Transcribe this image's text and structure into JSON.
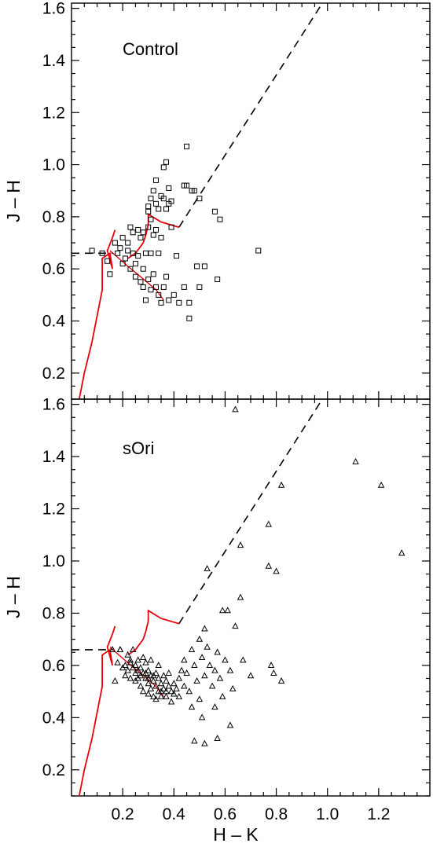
{
  "colors": {
    "sequence": "#e8000b",
    "reddening": "#000000",
    "points": "#000000"
  },
  "chart_data": [
    {
      "type": "scatter",
      "label": "Control",
      "xlabel": "H – K",
      "ylabel": "J – H",
      "xlim": [
        0.0,
        1.4
      ],
      "ylim": [
        0.1,
        1.62
      ],
      "yticks": [
        "0.2",
        "0.4",
        "0.6",
        "0.8",
        "1.0",
        "1.2",
        "1.4",
        "1.6"
      ],
      "xticks": [],
      "marker": "square",
      "points": [
        [
          0.08,
          0.67
        ],
        [
          0.12,
          0.66
        ],
        [
          0.14,
          0.63
        ],
        [
          0.15,
          0.58
        ],
        [
          0.17,
          0.7
        ],
        [
          0.18,
          0.66
        ],
        [
          0.19,
          0.68
        ],
        [
          0.2,
          0.72
        ],
        [
          0.2,
          0.62
        ],
        [
          0.21,
          0.64
        ],
        [
          0.22,
          0.67
        ],
        [
          0.22,
          0.7
        ],
        [
          0.23,
          0.76
        ],
        [
          0.23,
          0.6
        ],
        [
          0.24,
          0.66
        ],
        [
          0.24,
          0.74
        ],
        [
          0.25,
          0.62
        ],
        [
          0.25,
          0.57
        ],
        [
          0.26,
          0.75
        ],
        [
          0.26,
          0.65
        ],
        [
          0.27,
          0.72
        ],
        [
          0.27,
          0.55
        ],
        [
          0.28,
          0.74
        ],
        [
          0.28,
          0.6
        ],
        [
          0.28,
          0.53
        ],
        [
          0.29,
          0.66
        ],
        [
          0.29,
          0.48
        ],
        [
          0.3,
          0.84
        ],
        [
          0.3,
          0.82
        ],
        [
          0.3,
          0.76
        ],
        [
          0.3,
          0.56
        ],
        [
          0.31,
          0.87
        ],
        [
          0.31,
          0.79
        ],
        [
          0.31,
          0.66
        ],
        [
          0.31,
          0.52
        ],
        [
          0.32,
          0.9
        ],
        [
          0.32,
          0.73
        ],
        [
          0.32,
          0.58
        ],
        [
          0.33,
          0.94
        ],
        [
          0.33,
          0.85
        ],
        [
          0.33,
          0.75
        ],
        [
          0.33,
          0.53
        ],
        [
          0.34,
          0.83
        ],
        [
          0.34,
          0.66
        ],
        [
          0.34,
          0.5
        ],
        [
          0.35,
          0.88
        ],
        [
          0.35,
          0.72
        ],
        [
          0.35,
          0.47
        ],
        [
          0.36,
          0.99
        ],
        [
          0.36,
          0.87
        ],
        [
          0.36,
          0.53
        ],
        [
          0.37,
          1.01
        ],
        [
          0.37,
          0.83
        ],
        [
          0.37,
          0.57
        ],
        [
          0.38,
          0.91
        ],
        [
          0.38,
          0.85
        ],
        [
          0.38,
          0.48
        ],
        [
          0.39,
          0.86
        ],
        [
          0.39,
          0.76
        ],
        [
          0.4,
          0.5
        ],
        [
          0.41,
          0.65
        ],
        [
          0.42,
          0.47
        ],
        [
          0.44,
          0.92
        ],
        [
          0.44,
          0.53
        ],
        [
          0.45,
          1.07
        ],
        [
          0.45,
          0.92
        ],
        [
          0.46,
          0.47
        ],
        [
          0.46,
          0.41
        ],
        [
          0.47,
          0.9
        ],
        [
          0.48,
          0.9
        ],
        [
          0.49,
          0.61
        ],
        [
          0.5,
          0.87
        ],
        [
          0.5,
          0.53
        ],
        [
          0.52,
          0.61
        ],
        [
          0.56,
          0.82
        ],
        [
          0.57,
          0.56
        ],
        [
          0.58,
          0.79
        ],
        [
          0.73,
          0.67
        ]
      ]
    },
    {
      "type": "scatter",
      "label": "sOri",
      "xlabel": "H – K",
      "ylabel": "J – H",
      "xlim": [
        0.0,
        1.4
      ],
      "ylim": [
        0.1,
        1.62
      ],
      "yticks": [
        "0.2",
        "0.4",
        "0.6",
        "0.8",
        "1.0",
        "1.2",
        "1.4",
        "1.6"
      ],
      "xticks": [
        "0.2",
        "0.4",
        "0.6",
        "0.8",
        "1.0",
        "1.2"
      ],
      "marker": "triangle",
      "points": [
        [
          0.16,
          0.66
        ],
        [
          0.17,
          0.54
        ],
        [
          0.18,
          0.61
        ],
        [
          0.19,
          0.66
        ],
        [
          0.2,
          0.59
        ],
        [
          0.21,
          0.56
        ],
        [
          0.22,
          0.64
        ],
        [
          0.22,
          0.58
        ],
        [
          0.23,
          0.61
        ],
        [
          0.23,
          0.55
        ],
        [
          0.24,
          0.66
        ],
        [
          0.24,
          0.59
        ],
        [
          0.25,
          0.57
        ],
        [
          0.25,
          0.54
        ],
        [
          0.26,
          0.62
        ],
        [
          0.26,
          0.58
        ],
        [
          0.27,
          0.56
        ],
        [
          0.27,
          0.52
        ],
        [
          0.28,
          0.63
        ],
        [
          0.28,
          0.57
        ],
        [
          0.28,
          0.5
        ],
        [
          0.29,
          0.55
        ],
        [
          0.29,
          0.61
        ],
        [
          0.3,
          0.53
        ],
        [
          0.3,
          0.58
        ],
        [
          0.3,
          0.49
        ],
        [
          0.31,
          0.56
        ],
        [
          0.31,
          0.51
        ],
        [
          0.31,
          0.62
        ],
        [
          0.32,
          0.54
        ],
        [
          0.32,
          0.48
        ],
        [
          0.33,
          0.57
        ],
        [
          0.33,
          0.52
        ],
        [
          0.33,
          0.47
        ],
        [
          0.34,
          0.55
        ],
        [
          0.34,
          0.5
        ],
        [
          0.34,
          0.6
        ],
        [
          0.35,
          0.53
        ],
        [
          0.35,
          0.48
        ],
        [
          0.36,
          0.56
        ],
        [
          0.36,
          0.51
        ],
        [
          0.37,
          0.54
        ],
        [
          0.37,
          0.48
        ],
        [
          0.38,
          0.52
        ],
        [
          0.38,
          0.57
        ],
        [
          0.39,
          0.5
        ],
        [
          0.39,
          0.46
        ],
        [
          0.4,
          0.53
        ],
        [
          0.4,
          0.49
        ],
        [
          0.41,
          0.51
        ],
        [
          0.42,
          0.55
        ],
        [
          0.42,
          0.48
        ],
        [
          0.43,
          0.58
        ],
        [
          0.44,
          0.52
        ],
        [
          0.44,
          0.62
        ],
        [
          0.45,
          0.57
        ],
        [
          0.46,
          0.5
        ],
        [
          0.47,
          0.66
        ],
        [
          0.47,
          0.44
        ],
        [
          0.48,
          0.6
        ],
        [
          0.48,
          0.31
        ],
        [
          0.49,
          0.54
        ],
        [
          0.5,
          0.7
        ],
        [
          0.5,
          0.47
        ],
        [
          0.51,
          0.63
        ],
        [
          0.51,
          0.4
        ],
        [
          0.52,
          0.74
        ],
        [
          0.52,
          0.56
        ],
        [
          0.52,
          0.3
        ],
        [
          0.53,
          0.97
        ],
        [
          0.53,
          0.67
        ],
        [
          0.54,
          0.6
        ],
        [
          0.55,
          0.52
        ],
        [
          0.56,
          0.58
        ],
        [
          0.56,
          0.44
        ],
        [
          0.57,
          0.65
        ],
        [
          0.57,
          0.32
        ],
        [
          0.58,
          0.55
        ],
        [
          0.59,
          0.81
        ],
        [
          0.59,
          0.48
        ],
        [
          0.6,
          0.62
        ],
        [
          0.61,
          0.81
        ],
        [
          0.62,
          0.58
        ],
        [
          0.62,
          0.37
        ],
        [
          0.63,
          0.51
        ],
        [
          0.64,
          0.75
        ],
        [
          0.64,
          1.58
        ],
        [
          0.66,
          1.06
        ],
        [
          0.66,
          0.86
        ],
        [
          0.67,
          0.62
        ],
        [
          0.7,
          0.56
        ],
        [
          0.77,
          1.14
        ],
        [
          0.77,
          0.98
        ],
        [
          0.78,
          0.6
        ],
        [
          0.79,
          0.57
        ],
        [
          0.8,
          0.96
        ],
        [
          0.82,
          1.29
        ],
        [
          0.82,
          0.54
        ],
        [
          1.11,
          1.38
        ],
        [
          1.21,
          1.29
        ],
        [
          1.29,
          1.03
        ],
        [
          0.19,
          0.66
        ],
        [
          0.21,
          0.6
        ],
        [
          0.23,
          0.62
        ],
        [
          0.25,
          0.6
        ],
        [
          0.27,
          0.59
        ],
        [
          0.29,
          0.57
        ],
        [
          0.32,
          0.56
        ],
        [
          0.35,
          0.5
        ],
        [
          0.37,
          0.5
        ],
        [
          0.26,
          0.55
        ],
        [
          0.3,
          0.55
        ]
      ]
    }
  ]
}
